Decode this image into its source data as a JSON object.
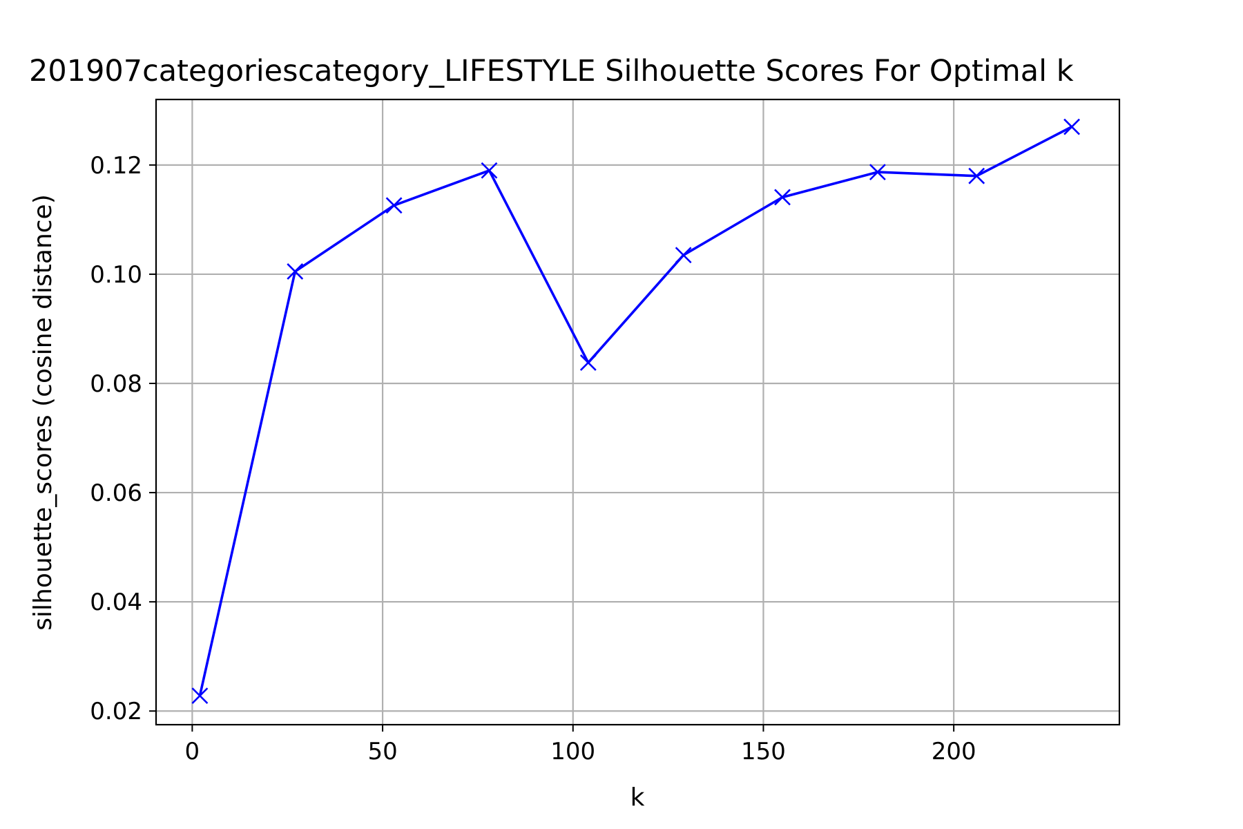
{
  "chart_data": {
    "type": "line",
    "title": "201907categoriescategory_LIFESTYLE Silhouette Scores For Optimal k",
    "xlabel": "k",
    "ylabel": "silhouette_scores (cosine distance)",
    "xlim": [
      -9.5,
      243.5
    ],
    "ylim": [
      0.0175,
      0.132
    ],
    "xticks": [
      0,
      50,
      100,
      150,
      200
    ],
    "xtick_labels": [
      "0",
      "50",
      "100",
      "150",
      "200"
    ],
    "yticks": [
      0.02,
      0.04,
      0.06,
      0.08,
      0.1,
      0.12
    ],
    "ytick_labels": [
      "0.02",
      "0.04",
      "0.06",
      "0.08",
      "0.10",
      "0.12"
    ],
    "grid": true,
    "line_color": "#0000ff",
    "marker": "x",
    "series": [
      {
        "x": [
          2,
          27,
          53,
          78,
          104,
          129,
          155,
          180,
          206,
          231
        ],
        "y": [
          0.0228,
          0.1005,
          0.1126,
          0.119,
          0.0838,
          0.1035,
          0.1141,
          0.1187,
          0.118,
          0.127
        ]
      }
    ]
  }
}
